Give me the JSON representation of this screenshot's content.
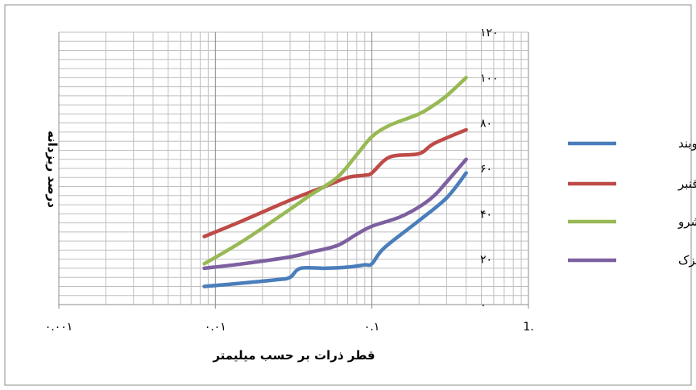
{
  "chart_data": {
    "type": "line",
    "title": "",
    "xlabel": "قطر ذرات بر حسب میلیمتر",
    "ylabel": "درصد ریزدانه",
    "x_scale": "log",
    "xlim": [
      0.001,
      1
    ],
    "ylim": [
      0,
      120
    ],
    "x_ticks": [
      0.001,
      0.01,
      0.1,
      1
    ],
    "x_tick_labels": [
      "۰.۰۰۱",
      "۰.۰۱",
      "۰.۱",
      "1."
    ],
    "y_ticks": [
      0,
      20,
      40,
      60,
      80,
      100,
      120
    ],
    "y_tick_labels": [
      "۰",
      "۲۰",
      "۴۰",
      "۶۰",
      "۸۰",
      "۱۰۰",
      "۱۲۰"
    ],
    "y_axis_position": "right",
    "grid": true,
    "legend_position": "right",
    "series": [
      {
        "name": "بازوبند",
        "color": "#4A7EBB",
        "points": [
          [
            0.0085,
            8
          ],
          [
            0.015,
            9.5
          ],
          [
            0.025,
            11
          ],
          [
            0.03,
            12
          ],
          [
            0.035,
            16
          ],
          [
            0.05,
            16
          ],
          [
            0.07,
            16.5
          ],
          [
            0.09,
            17.5
          ],
          [
            0.1,
            18
          ],
          [
            0.12,
            25
          ],
          [
            0.2,
            37
          ],
          [
            0.3,
            47
          ],
          [
            0.4,
            58
          ]
        ]
      },
      {
        "name": "کلاته قنبر",
        "color": "#BE4B48",
        "points": [
          [
            0.0085,
            30
          ],
          [
            0.015,
            37
          ],
          [
            0.03,
            46
          ],
          [
            0.05,
            52
          ],
          [
            0.07,
            56
          ],
          [
            0.09,
            57
          ],
          [
            0.1,
            58
          ],
          [
            0.13,
            65
          ],
          [
            0.2,
            66.5
          ],
          [
            0.25,
            71
          ],
          [
            0.4,
            77
          ]
        ]
      },
      {
        "name": "بشرو",
        "color": "#98B954",
        "points": [
          [
            0.0085,
            18
          ],
          [
            0.015,
            28
          ],
          [
            0.03,
            42
          ],
          [
            0.04,
            48
          ],
          [
            0.06,
            56
          ],
          [
            0.08,
            66
          ],
          [
            0.1,
            74
          ],
          [
            0.13,
            79
          ],
          [
            0.2,
            84
          ],
          [
            0.25,
            88
          ],
          [
            0.3,
            92
          ],
          [
            0.4,
            100
          ]
        ]
      },
      {
        "name": "کاریزک",
        "color": "#7D60A0",
        "points": [
          [
            0.0085,
            16
          ],
          [
            0.015,
            18
          ],
          [
            0.03,
            21
          ],
          [
            0.04,
            23
          ],
          [
            0.06,
            26
          ],
          [
            0.08,
            31
          ],
          [
            0.1,
            34.5
          ],
          [
            0.15,
            38.5
          ],
          [
            0.2,
            43
          ],
          [
            0.25,
            48
          ],
          [
            0.3,
            54
          ],
          [
            0.4,
            64
          ]
        ]
      }
    ]
  }
}
